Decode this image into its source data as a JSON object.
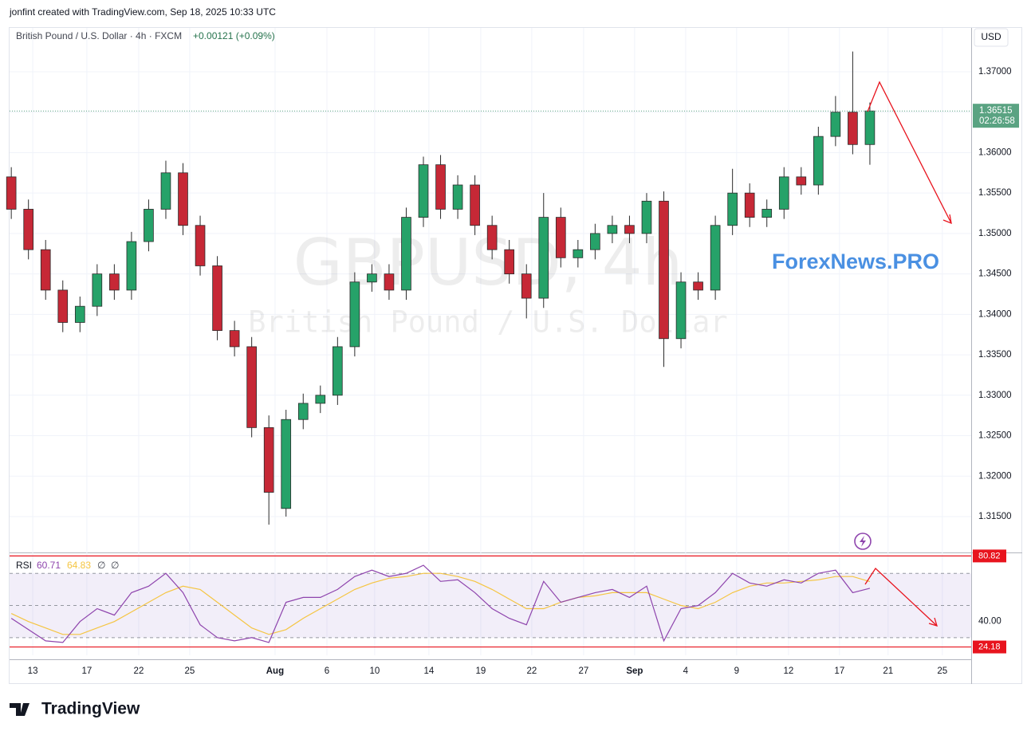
{
  "header": "jonfint created with TradingView.com, Sep 18, 2025 10:33 UTC",
  "logo": "TradingView",
  "chart_data": [
    {
      "type": "candlestick",
      "title": "British Pound / U.S. Dollar · 4h · FXCM",
      "change": "+0.00121 (+0.09%)",
      "watermark": "GBPUSD, 4h",
      "watermark_subtitle": "British Pound / U.S. Dollar",
      "annotation": "ForexNews.PRO",
      "currency": "USD",
      "countdown": "02:26:58",
      "up_color": "#26a269",
      "down_color": "#c62836",
      "last_color": "#5aa382",
      "grid": true,
      "x": [
        0.1,
        1.1,
        2.1,
        3.1,
        4.1,
        5.1,
        6.1,
        7.1,
        8.1,
        9.1,
        10.1,
        11.1,
        12.1,
        13.1,
        14.1,
        15.1,
        16.1,
        17.1,
        18.1,
        19.1,
        20.1,
        21.1,
        22.1,
        23.1,
        24.1,
        25.1,
        26.1,
        27.1,
        28.1,
        29.1,
        30.1,
        31.1,
        32.1,
        33.1,
        34.1,
        35.1,
        36.1,
        37.1,
        38.1,
        39.1,
        40.1,
        41.1,
        42.1,
        43.1,
        44.1,
        45.1,
        46.1,
        47.1,
        48.1,
        49.1,
        50.1
      ],
      "open": [
        1.357,
        1.353,
        1.348,
        1.343,
        1.339,
        1.341,
        1.345,
        1.343,
        1.349,
        1.353,
        1.3575,
        1.351,
        1.346,
        1.338,
        1.336,
        1.326,
        1.316,
        1.327,
        1.329,
        1.33,
        1.336,
        1.344,
        1.345,
        1.343,
        1.352,
        1.3585,
        1.353,
        1.356,
        1.351,
        1.348,
        1.345,
        1.342,
        1.352,
        1.347,
        1.348,
        1.35,
        1.351,
        1.35,
        1.354,
        1.337,
        1.344,
        1.343,
        1.351,
        1.355,
        1.352,
        1.353,
        1.357,
        1.356,
        1.362,
        1.365,
        1.361
      ],
      "high": [
        1.3582,
        1.3542,
        1.3492,
        1.3442,
        1.3422,
        1.3462,
        1.3462,
        1.3502,
        1.3542,
        1.359,
        1.3587,
        1.3522,
        1.3472,
        1.3392,
        1.3372,
        1.3275,
        1.3282,
        1.3302,
        1.3312,
        1.3372,
        1.3452,
        1.3462,
        1.3462,
        1.3532,
        1.3595,
        1.3597,
        1.3572,
        1.3572,
        1.3522,
        1.3492,
        1.3462,
        1.355,
        1.3532,
        1.3492,
        1.3512,
        1.3522,
        1.3522,
        1.355,
        1.3552,
        1.3452,
        1.3452,
        1.3522,
        1.358,
        1.3562,
        1.3542,
        1.3582,
        1.3582,
        1.3632,
        1.367,
        1.3725,
        1.3662
      ],
      "low": [
        1.3518,
        1.3468,
        1.3418,
        1.3378,
        1.3378,
        1.3398,
        1.3418,
        1.3418,
        1.3478,
        1.3518,
        1.3498,
        1.3448,
        1.3368,
        1.3348,
        1.3248,
        1.314,
        1.315,
        1.3258,
        1.3278,
        1.3288,
        1.3348,
        1.3428,
        1.3418,
        1.3418,
        1.3508,
        1.3518,
        1.3518,
        1.3498,
        1.3468,
        1.3438,
        1.3395,
        1.3408,
        1.3458,
        1.3458,
        1.3468,
        1.3488,
        1.3488,
        1.3488,
        1.3335,
        1.3358,
        1.3418,
        1.3418,
        1.3498,
        1.3508,
        1.3508,
        1.3518,
        1.3548,
        1.3548,
        1.3608,
        1.3598,
        1.3585
      ],
      "close": [
        1.353,
        1.348,
        1.343,
        1.339,
        1.341,
        1.345,
        1.343,
        1.349,
        1.353,
        1.3575,
        1.351,
        1.346,
        1.338,
        1.336,
        1.326,
        1.318,
        1.327,
        1.329,
        1.33,
        1.336,
        1.344,
        1.345,
        1.343,
        1.352,
        1.3585,
        1.353,
        1.356,
        1.351,
        1.348,
        1.345,
        1.342,
        1.352,
        1.347,
        1.348,
        1.35,
        1.351,
        1.35,
        1.354,
        1.337,
        1.344,
        1.343,
        1.351,
        1.355,
        1.352,
        1.353,
        1.357,
        1.356,
        1.362,
        1.365,
        1.361,
        1.36515
      ],
      "xlim": [
        0,
        56
      ],
      "xticks": [
        {
          "value": 1.35,
          "label": "13"
        },
        {
          "value": 4.5,
          "label": "17"
        },
        {
          "value": 7.52,
          "label": "22"
        },
        {
          "value": 10.49,
          "label": "25"
        },
        {
          "value": 15.46,
          "label": "Aug"
        },
        {
          "value": 18.48,
          "label": "6"
        },
        {
          "value": 21.26,
          "label": "10"
        },
        {
          "value": 24.42,
          "label": "14"
        },
        {
          "value": 27.44,
          "label": "19"
        },
        {
          "value": 30.41,
          "label": "22"
        },
        {
          "value": 33.43,
          "label": "27"
        },
        {
          "value": 36.4,
          "label": "Sep"
        },
        {
          "value": 39.37,
          "label": "4"
        },
        {
          "value": 42.34,
          "label": "9"
        },
        {
          "value": 45.36,
          "label": "12"
        },
        {
          "value": 48.33,
          "label": "17"
        },
        {
          "value": 51.16,
          "label": "21"
        },
        {
          "value": 54.32,
          "label": "25"
        }
      ],
      "ylim": [
        1.31066,
        1.37542
      ],
      "yticks": [
        {
          "value": 1.315,
          "label": "1.31500"
        },
        {
          "value": 1.32,
          "label": "1.32000"
        },
        {
          "value": 1.325,
          "label": "1.32500"
        },
        {
          "value": 1.33,
          "label": "1.33000"
        },
        {
          "value": 1.335,
          "label": "1.33500"
        },
        {
          "value": 1.34,
          "label": "1.34000"
        },
        {
          "value": 1.345,
          "label": "1.34500"
        },
        {
          "value": 1.35,
          "label": "1.35000"
        },
        {
          "value": 1.355,
          "label": "1.35500"
        },
        {
          "value": 1.36,
          "label": "1.36000"
        },
        {
          "value": 1.365,
          "label": "1.36500"
        },
        {
          "value": 1.37,
          "label": "1.37000"
        }
      ]
    },
    {
      "type": "line",
      "title": "RSI",
      "legend_extras": [
        "∅",
        "∅"
      ],
      "series": [
        {
          "color": "#8e44ad",
          "values": [
            42,
            35,
            28,
            27,
            40,
            48,
            44,
            58,
            62,
            70,
            58,
            38,
            30,
            28,
            30,
            27,
            52,
            55,
            55,
            60,
            68,
            72,
            68,
            70,
            75,
            65,
            66,
            58,
            48,
            42,
            38,
            65,
            52,
            55,
            58,
            60,
            55,
            62,
            28,
            48,
            50,
            58,
            70,
            64,
            62,
            66,
            64,
            70,
            72,
            58,
            60.71
          ]
        },
        {
          "color": "#f5c542",
          "values": [
            45,
            40,
            36,
            32,
            32,
            36,
            40,
            46,
            52,
            58,
            62,
            60,
            52,
            44,
            36,
            32,
            35,
            42,
            48,
            54,
            60,
            64,
            67,
            68,
            70,
            70,
            68,
            65,
            60,
            54,
            48,
            48,
            52,
            55,
            56,
            58,
            58,
            58,
            54,
            50,
            48,
            52,
            58,
            62,
            64,
            64,
            65,
            66,
            68,
            68,
            64.83
          ]
        }
      ],
      "ylim": [
        19,
        83
      ],
      "yticks": [
        {
          "value": 40,
          "label": "40.00"
        }
      ],
      "bands": [
        70,
        50,
        30
      ],
      "levels": [
        {
          "value": 80.82,
          "label": "80.82"
        },
        {
          "value": 24.18,
          "label": "24.18"
        }
      ],
      "level_color": "#e8141e"
    }
  ]
}
